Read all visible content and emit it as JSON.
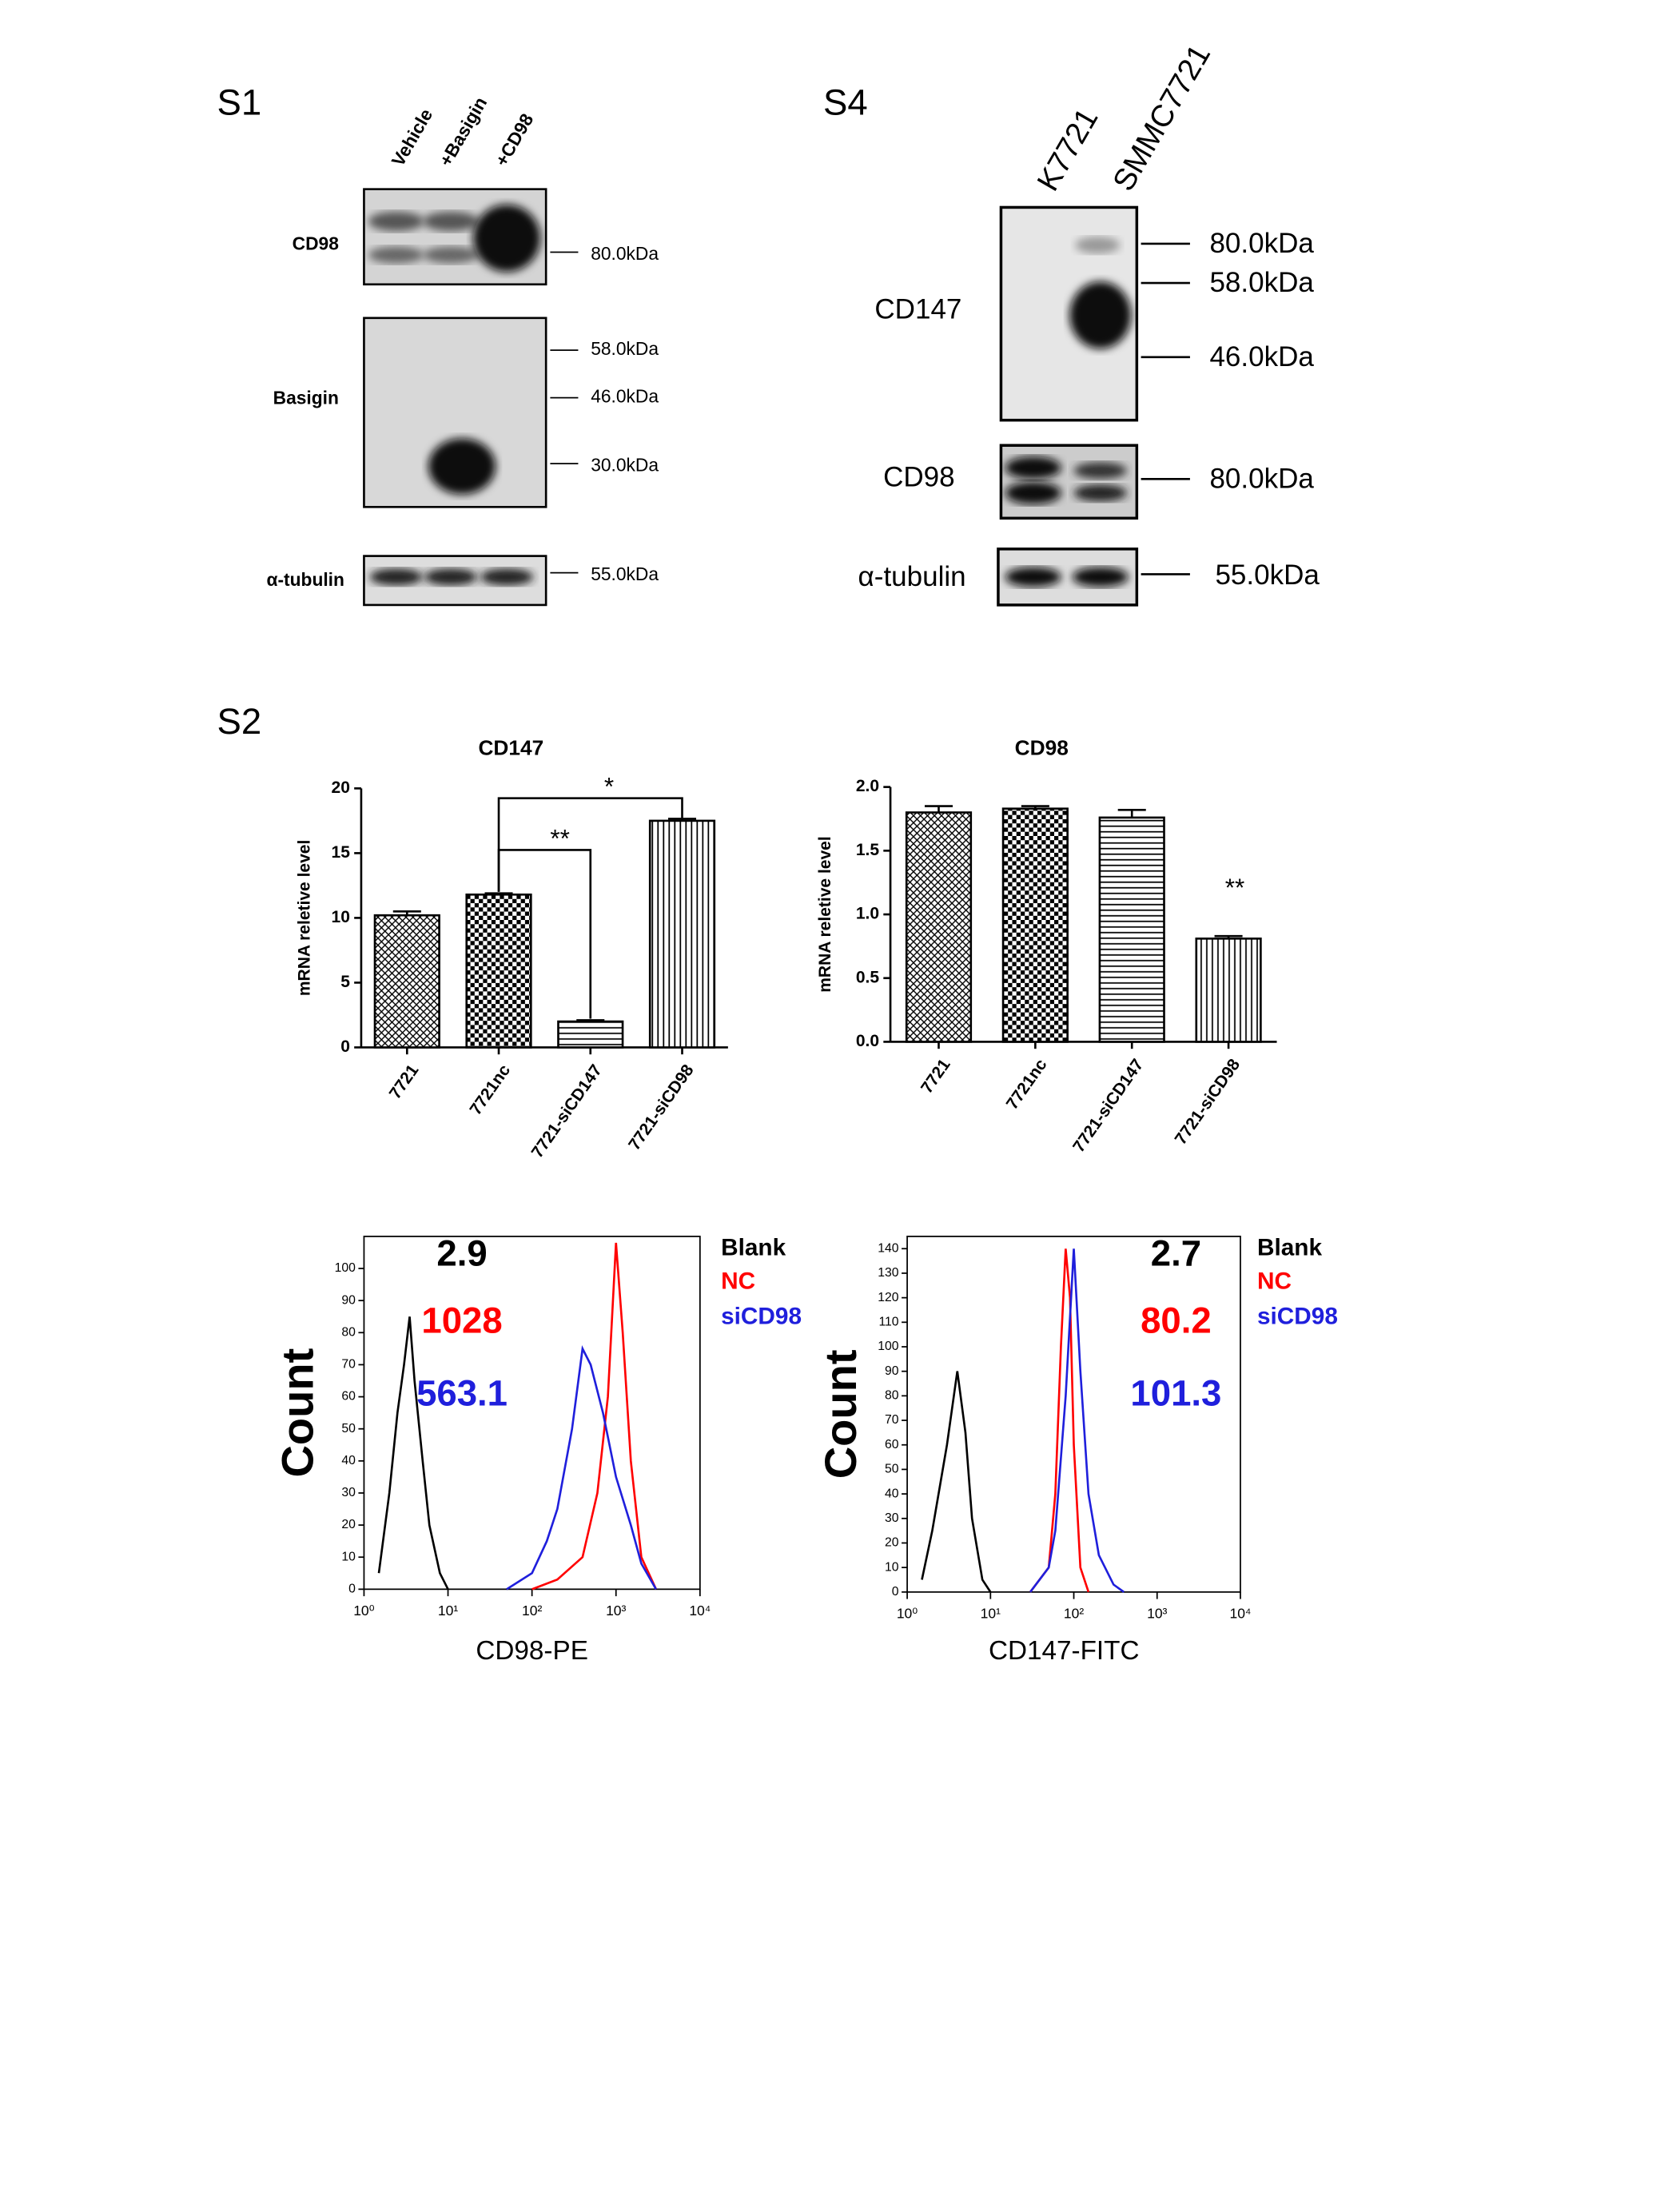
{
  "panels": {
    "s1": {
      "label": "S1",
      "lanes": [
        "Vehicle",
        "+Basigin",
        "+CD98"
      ],
      "rows": [
        {
          "name": "CD98",
          "markers": [
            "80.0kDa"
          ]
        },
        {
          "name": "Basigin",
          "markers": [
            "58.0kDa",
            "46.0kDa",
            "30.0kDa"
          ]
        },
        {
          "name": "α-tubulin",
          "markers": [
            "55.0kDa"
          ]
        }
      ]
    },
    "s4": {
      "label": "S4",
      "lanes": [
        "K7721",
        "SMMC7721"
      ],
      "rows": [
        {
          "name": "CD147",
          "markers": [
            "80.0kDa",
            "58.0kDa",
            "46.0kDa"
          ]
        },
        {
          "name": "CD98",
          "markers": [
            "80.0kDa"
          ]
        },
        {
          "name": "α-tubulin",
          "markers": [
            "55.0kDa"
          ]
        }
      ]
    },
    "s2": {
      "label": "S2"
    }
  },
  "chart_data": [
    {
      "type": "bar",
      "title": "CD147",
      "y_label": "mRNA reletive level",
      "categories": [
        "7721",
        "7721nc",
        "7721-siCD147",
        "7721-siCD98"
      ],
      "values": [
        10.2,
        11.8,
        2.0,
        17.5
      ],
      "errors": [
        0.3,
        0.1,
        0.1,
        0.15
      ],
      "ylim": [
        0,
        20
      ],
      "yticks": [
        0,
        5,
        10,
        15,
        20
      ],
      "annotations": [
        "*",
        "**"
      ]
    },
    {
      "type": "bar",
      "title": "CD98",
      "y_label": "mRNA reletive level",
      "categories": [
        "7721",
        "7721nc",
        "7721-siCD147",
        "7721-siCD98"
      ],
      "values": [
        1.8,
        1.83,
        1.76,
        0.81
      ],
      "errors": [
        0.05,
        0.02,
        0.06,
        0.02
      ],
      "ylim": [
        0,
        2
      ],
      "yticks": [
        {
          "value": 0,
          "label": "0.0"
        },
        0.5,
        {
          "value": 1,
          "label": "1.0"
        },
        1.5,
        {
          "value": 2,
          "label": "2.0"
        }
      ],
      "annotations": [
        "**"
      ]
    },
    {
      "type": "line",
      "x_label": "CD98-PE",
      "y_label": "Count",
      "xscale": "log",
      "xlim": [
        1,
        10000
      ],
      "xticks": [
        {
          "value": 1,
          "label": "10⁰"
        },
        {
          "value": 10,
          "label": "10¹"
        },
        {
          "value": 100,
          "label": "10²"
        },
        {
          "value": 1000,
          "label": "10³"
        },
        {
          "value": 10000,
          "label": "10⁴"
        }
      ],
      "ylim": [
        0,
        110
      ],
      "yticks": [
        0,
        10,
        20,
        30,
        40,
        50,
        60,
        70,
        80,
        90,
        100
      ],
      "series": [
        {
          "name": "Blank",
          "color": "#000000",
          "stat": 2.9,
          "x": [
            1.5,
            2,
            2.5,
            3,
            3.5,
            4,
            5,
            6,
            8,
            10
          ],
          "values": [
            5,
            30,
            55,
            70,
            85,
            65,
            40,
            20,
            5,
            0
          ]
        },
        {
          "name": "NC",
          "color": "#ff0000",
          "stat": 1028,
          "x": [
            100,
            200,
            400,
            600,
            800,
            1000,
            1200,
            1500,
            2000,
            3000
          ],
          "values": [
            0,
            3,
            10,
            30,
            60,
            108,
            80,
            40,
            10,
            0
          ]
        },
        {
          "name": "siCD98",
          "color": "#1f1fdc",
          "stat": 563.1,
          "x": [
            50,
            100,
            150,
            200,
            300,
            400,
            500,
            700,
            1000,
            1500,
            2000,
            3000
          ],
          "values": [
            0,
            5,
            15,
            25,
            50,
            75,
            70,
            55,
            35,
            20,
            8,
            0
          ]
        }
      ]
    },
    {
      "type": "line",
      "x_label": "CD147-FITC",
      "y_label": "Count",
      "xscale": "log",
      "xlim": [
        1,
        10000
      ],
      "xticks": [
        {
          "value": 1,
          "label": "10⁰"
        },
        {
          "value": 10,
          "label": "10¹"
        },
        {
          "value": 100,
          "label": "10²"
        },
        {
          "value": 1000,
          "label": "10³"
        },
        {
          "value": 10000,
          "label": "10⁴"
        }
      ],
      "ylim": [
        0,
        145
      ],
      "yticks": [
        0,
        10,
        20,
        30,
        40,
        50,
        60,
        70,
        80,
        90,
        100,
        110,
        120,
        130,
        140
      ],
      "series": [
        {
          "name": "Blank",
          "color": "#000000",
          "stat": 2.7,
          "x": [
            1.5,
            2,
            3,
            4,
            5,
            6,
            8,
            10
          ],
          "values": [
            5,
            25,
            60,
            90,
            65,
            30,
            5,
            0
          ]
        },
        {
          "name": "NC",
          "color": "#ff0000",
          "stat": 80.2,
          "x": [
            30,
            50,
            60,
            70,
            80,
            90,
            100,
            120,
            150
          ],
          "values": [
            0,
            10,
            40,
            100,
            140,
            120,
            60,
            10,
            0
          ]
        },
        {
          "name": "siCD98",
          "color": "#1f1fdc",
          "stat": 101.3,
          "x": [
            30,
            50,
            60,
            80,
            100,
            120,
            150,
            200,
            300,
            400
          ],
          "values": [
            0,
            10,
            25,
            80,
            140,
            90,
            40,
            15,
            3,
            0
          ]
        }
      ]
    }
  ]
}
